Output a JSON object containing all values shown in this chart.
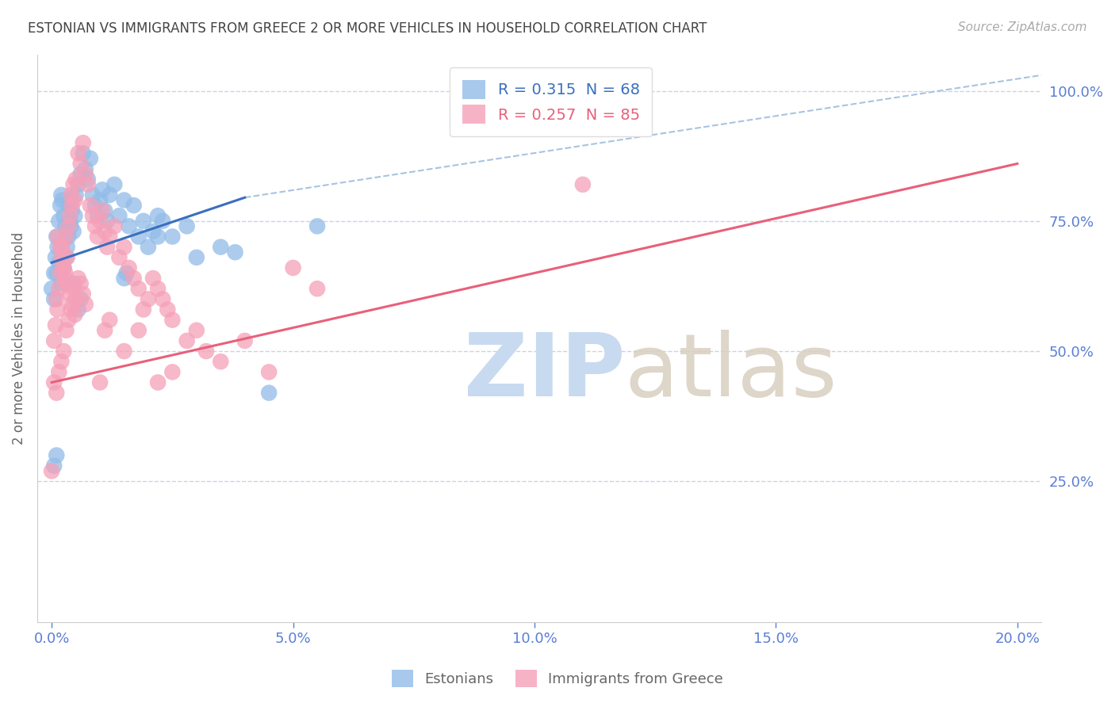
{
  "title": "ESTONIAN VS IMMIGRANTS FROM GREECE 2 OR MORE VEHICLES IN HOUSEHOLD CORRELATION CHART",
  "source": "Source: ZipAtlas.com",
  "ylabel": "2 or more Vehicles in Household",
  "xlabel_ticks": [
    "0.0%",
    "5.0%",
    "10.0%",
    "15.0%",
    "20.0%"
  ],
  "xlabel_vals": [
    0.0,
    5.0,
    10.0,
    15.0,
    20.0
  ],
  "ylabel_right_ticks": [
    "100.0%",
    "75.0%",
    "50.0%",
    "25.0%"
  ],
  "ylabel_right_vals": [
    100.0,
    75.0,
    50.0,
    25.0
  ],
  "xmin": -0.3,
  "xmax": 20.5,
  "ymin": -2.0,
  "ymax": 107.0,
  "blue_color": "#92bce8",
  "pink_color": "#f5a0b8",
  "blue_line_color": "#3a6fbf",
  "pink_line_color": "#e8607a",
  "dashed_line_color": "#a8c4e0",
  "R_blue": 0.315,
  "N_blue": 68,
  "R_pink": 0.257,
  "N_pink": 85,
  "legend_label_blue": "Estonians",
  "legend_label_pink": "Immigrants from Greece",
  "title_color": "#444444",
  "axis_color": "#5b7fd4",
  "grid_color": "#c8d4e8",
  "watermark_zip_color": "#c8daf0",
  "watermark_atlas_color": "#d8cfc0",
  "blue_line_x0": 0.0,
  "blue_line_y0": 67.0,
  "blue_line_x1": 4.0,
  "blue_line_y1": 79.5,
  "pink_line_x0": 0.0,
  "pink_line_y0": 44.0,
  "pink_line_x1": 20.0,
  "pink_line_y1": 86.0,
  "dashed_line_x0": 4.0,
  "dashed_line_y0": 79.5,
  "dashed_line_x1": 20.5,
  "dashed_line_y1": 103.0,
  "blue_scatter_x": [
    0.05,
    0.08,
    0.1,
    0.12,
    0.15,
    0.18,
    0.2,
    0.22,
    0.25,
    0.28,
    0.3,
    0.32,
    0.35,
    0.38,
    0.4,
    0.42,
    0.45,
    0.48,
    0.5,
    0.55,
    0.6,
    0.65,
    0.7,
    0.75,
    0.8,
    0.85,
    0.9,
    0.95,
    1.0,
    1.05,
    1.1,
    1.15,
    1.2,
    1.3,
    1.4,
    1.5,
    1.6,
    1.7,
    1.8,
    1.9,
    2.0,
    2.1,
    2.2,
    2.5,
    2.8,
    3.0,
    3.5,
    4.5,
    5.5,
    0.0,
    0.05,
    0.1,
    0.15,
    0.2,
    0.25,
    0.3,
    0.35,
    0.4,
    0.45,
    1.5,
    1.55,
    3.8,
    2.2,
    2.3,
    0.05,
    0.1,
    0.55,
    0.6
  ],
  "blue_scatter_y": [
    65,
    68,
    72,
    70,
    75,
    78,
    80,
    79,
    76,
    74,
    72,
    70,
    78,
    75,
    79,
    77,
    73,
    76,
    80,
    82,
    84,
    88,
    85,
    83,
    87,
    80,
    78,
    76,
    79,
    81,
    77,
    75,
    80,
    82,
    76,
    79,
    74,
    78,
    72,
    75,
    70,
    73,
    76,
    72,
    74,
    68,
    70,
    42,
    74,
    62,
    60,
    65,
    67,
    63,
    66,
    68,
    72,
    74,
    63,
    64,
    65,
    69,
    72,
    75,
    28,
    30,
    58,
    60
  ],
  "pink_scatter_x": [
    0.0,
    0.05,
    0.08,
    0.1,
    0.12,
    0.15,
    0.18,
    0.2,
    0.22,
    0.25,
    0.28,
    0.3,
    0.32,
    0.35,
    0.38,
    0.4,
    0.42,
    0.45,
    0.48,
    0.5,
    0.55,
    0.6,
    0.65,
    0.7,
    0.75,
    0.8,
    0.85,
    0.9,
    0.95,
    1.0,
    1.05,
    1.1,
    1.15,
    1.2,
    1.3,
    1.4,
    1.5,
    1.6,
    1.7,
    1.8,
    1.9,
    2.0,
    2.1,
    2.2,
    2.3,
    2.4,
    2.5,
    2.8,
    3.0,
    3.2,
    3.5,
    4.0,
    4.5,
    5.0,
    5.5,
    11.0,
    0.05,
    0.1,
    0.15,
    0.2,
    0.25,
    0.3,
    0.35,
    0.4,
    0.45,
    0.5,
    0.55,
    0.6,
    0.65,
    0.7,
    1.0,
    1.5,
    1.8,
    2.5,
    0.12,
    0.18,
    0.22,
    0.28,
    0.32,
    0.38,
    0.42,
    0.48,
    2.2,
    1.2,
    1.1
  ],
  "pink_scatter_y": [
    27,
    52,
    55,
    60,
    58,
    62,
    65,
    68,
    70,
    66,
    64,
    72,
    68,
    74,
    76,
    80,
    78,
    82,
    79,
    83,
    88,
    86,
    90,
    84,
    82,
    78,
    76,
    74,
    72,
    75,
    77,
    73,
    70,
    72,
    74,
    68,
    70,
    66,
    64,
    62,
    58,
    60,
    64,
    62,
    60,
    58,
    56,
    52,
    54,
    50,
    48,
    52,
    46,
    66,
    62,
    82,
    44,
    42,
    46,
    48,
    50,
    54,
    56,
    58,
    62,
    60,
    64,
    63,
    61,
    59,
    44,
    50,
    54,
    46,
    72,
    70,
    67,
    65,
    63,
    61,
    59,
    57,
    44,
    56,
    54
  ]
}
